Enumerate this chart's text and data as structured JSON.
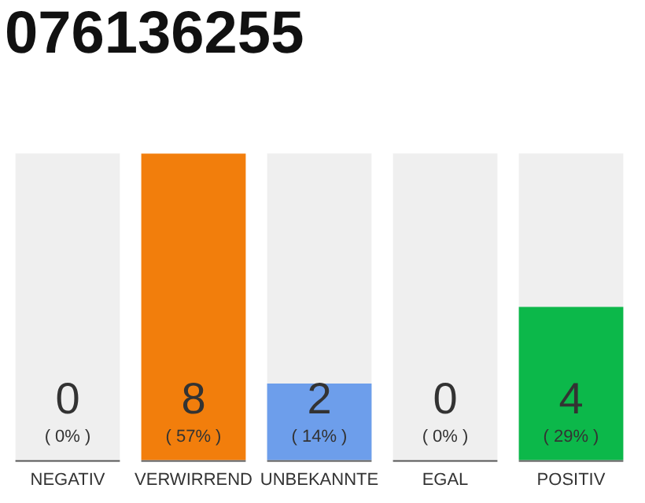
{
  "chart_data": {
    "type": "bar",
    "title": "076136255",
    "categories": [
      "NEGATIV",
      "VERWIRREND",
      "UNBEKANNTE",
      "EGAL",
      "POSITIV"
    ],
    "values": [
      0,
      8,
      2,
      0,
      4
    ],
    "colors": [
      "#999999",
      "#f27e0c",
      "#6d9eeb",
      "#999999",
      "#0cb84a"
    ],
    "value_labels": [
      "0\n( 0% )",
      "8\n( 57% )",
      "2\n( 14% )",
      "0\n( 0% )",
      "4\n( 29% )"
    ],
    "bands": [
      {
        "axis": "x",
        "from": "NEGATIV",
        "to": "NEGATIV",
        "color": "#efefef"
      },
      {
        "axis": "x",
        "from": "UNBEKANNTE",
        "to": "UNBEKANNTE",
        "color": "#efefef"
      },
      {
        "axis": "x",
        "from": "EGAL",
        "to": "EGAL",
        "color": "#efefef"
      },
      {
        "axis": "x",
        "from": "POSITIV",
        "to": "POSITIV",
        "color": "#efefef"
      }
    ],
    "ylim": [
      0,
      8
    ],
    "grid": false,
    "legend": false,
    "tick_labels": "x"
  }
}
